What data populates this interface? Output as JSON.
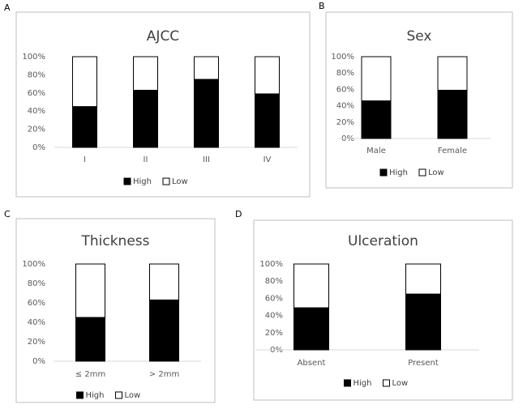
{
  "chart_data": [
    {
      "type": "stacked_bar",
      "panel_label": "A",
      "title": "AJCC",
      "categories": [
        "I",
        "II",
        "III",
        "IV"
      ],
      "series": [
        {
          "name": "High",
          "color": "#000000",
          "values": [
            45,
            63,
            75,
            59
          ]
        },
        {
          "name": "Low",
          "color": "#ffffff",
          "values": [
            55,
            37,
            25,
            41
          ]
        }
      ],
      "ylim": [
        0,
        100
      ],
      "yticks": [
        {
          "value": 0,
          "label": "0%"
        },
        {
          "value": 20,
          "label": "20%"
        },
        {
          "value": 40,
          "label": "40%"
        },
        {
          "value": 60,
          "label": "60%"
        },
        {
          "value": 80,
          "label": "80%"
        },
        {
          "value": 100,
          "label": "100%"
        }
      ],
      "legend": "bottom"
    },
    {
      "type": "stacked_bar",
      "panel_label": "B",
      "title": "Sex",
      "categories": [
        "Male",
        "Female"
      ],
      "series": [
        {
          "name": "High",
          "color": "#000000",
          "values": [
            46,
            59
          ]
        },
        {
          "name": "Low",
          "color": "#ffffff",
          "values": [
            54,
            41
          ]
        }
      ],
      "ylim": [
        0,
        100
      ],
      "yticks": [
        {
          "value": 0,
          "label": "0%"
        },
        {
          "value": 20,
          "label": "20%"
        },
        {
          "value": 40,
          "label": "40%"
        },
        {
          "value": 60,
          "label": "60%"
        },
        {
          "value": 80,
          "label": "80%"
        },
        {
          "value": 100,
          "label": "100%"
        }
      ],
      "legend": "bottom"
    },
    {
      "type": "stacked_bar",
      "panel_label": "C",
      "title": "Thickness",
      "categories": [
        "≤ 2mm",
        "> 2mm"
      ],
      "series": [
        {
          "name": "High",
          "color": "#000000",
          "values": [
            45,
            63
          ]
        },
        {
          "name": "Low",
          "color": "#ffffff",
          "values": [
            55,
            37
          ]
        }
      ],
      "ylim": [
        0,
        100
      ],
      "yticks": [
        {
          "value": 0,
          "label": "0%"
        },
        {
          "value": 20,
          "label": "20%"
        },
        {
          "value": 40,
          "label": "40%"
        },
        {
          "value": 60,
          "label": "60%"
        },
        {
          "value": 80,
          "label": "80%"
        },
        {
          "value": 100,
          "label": "100%"
        }
      ],
      "legend": "bottom"
    },
    {
      "type": "stacked_bar",
      "panel_label": "D",
      "title": "Ulceration",
      "categories": [
        "Absent",
        "Present"
      ],
      "series": [
        {
          "name": "High",
          "color": "#000000",
          "values": [
            49,
            65
          ]
        },
        {
          "name": "Low",
          "color": "#ffffff",
          "values": [
            51,
            35
          ]
        }
      ],
      "ylim": [
        0,
        100
      ],
      "yticks": [
        {
          "value": 0,
          "label": "0%"
        },
        {
          "value": 20,
          "label": "20%"
        },
        {
          "value": 40,
          "label": "40%"
        },
        {
          "value": 60,
          "label": "60%"
        },
        {
          "value": 80,
          "label": "80%"
        },
        {
          "value": 100,
          "label": "100%"
        }
      ],
      "legend": "bottom"
    }
  ]
}
